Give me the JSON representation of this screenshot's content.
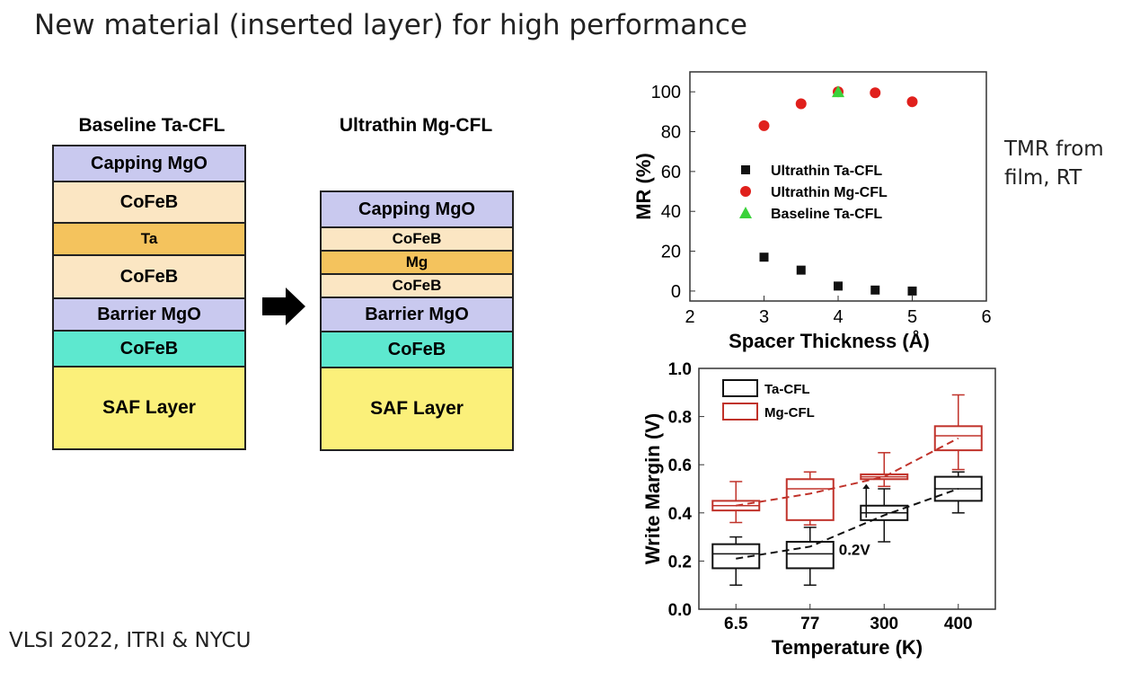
{
  "slide": {
    "title": "New material (inserted layer) for high performance",
    "footer": "VLSI 2022, ITRI & NYCU",
    "note_line1": "TMR from",
    "note_line2": "film, RT"
  },
  "stacks": [
    {
      "title": "Baseline Ta-CFL",
      "layers": [
        {
          "label": "Capping MgO",
          "color": "#c9c9ef"
        },
        {
          "label": "CoFeB",
          "color": "#fbe6c3"
        },
        {
          "label": "Ta",
          "color": "#f4c35d"
        },
        {
          "label": "CoFeB",
          "color": "#fbe6c3"
        },
        {
          "label": "Barrier MgO",
          "color": "#c9c9ef"
        },
        {
          "label": "CoFeB",
          "color": "#5de8cf"
        },
        {
          "label": "SAF Layer",
          "color": "#fbf07a"
        }
      ]
    },
    {
      "title": "Ultrathin Mg-CFL",
      "layers": [
        {
          "label": "Capping MgO",
          "color": "#c9c9ef"
        },
        {
          "label": "CoFeB",
          "color": "#fbe6c3"
        },
        {
          "label": "Mg",
          "color": "#f4c35d"
        },
        {
          "label": "CoFeB",
          "color": "#fbe6c3"
        },
        {
          "label": "Barrier MgO",
          "color": "#c9c9ef"
        },
        {
          "label": "CoFeB",
          "color": "#5de8cf"
        },
        {
          "label": "SAF Layer",
          "color": "#fbf07a"
        }
      ]
    }
  ],
  "chart_data": [
    {
      "type": "scatter",
      "xlabel": "Spacer Thickness (Å)",
      "ylabel": "MR (%)",
      "xlim": [
        2,
        6
      ],
      "ylim": [
        -5,
        110
      ],
      "xticks": [
        2,
        3,
        4,
        5,
        6
      ],
      "yticks": [
        0,
        20,
        40,
        60,
        80,
        100
      ],
      "legend_position": "center-left",
      "series": [
        {
          "name": "Ultrathin Ta-CFL",
          "marker": "square",
          "color": "#111111",
          "x": [
            3,
            3.5,
            4,
            4.5,
            5
          ],
          "y": [
            17,
            10.5,
            2.5,
            0.5,
            0
          ]
        },
        {
          "name": "Ultrathin Mg-CFL",
          "marker": "circle",
          "color": "#e0201c",
          "x": [
            3,
            3.5,
            4,
            4.5,
            5
          ],
          "y": [
            83,
            94,
            100,
            99.5,
            95
          ]
        },
        {
          "name": "Baseline Ta-CFL",
          "marker": "triangle",
          "color": "#3bd23b",
          "x": [
            4
          ],
          "y": [
            100
          ]
        }
      ]
    },
    {
      "type": "box",
      "xlabel": "Temperature (K)",
      "ylabel": "Write Margin (V)",
      "categories": [
        "6.5",
        "77",
        "300",
        "400"
      ],
      "ylim": [
        0,
        1.0
      ],
      "yticks": [
        "0.0",
        "0.2",
        "0.4",
        "0.6",
        "0.8",
        "1.0"
      ],
      "legend_position": "top-left",
      "annotation": "0.2V",
      "series": [
        {
          "name": "Ta-CFL",
          "color": "#111111",
          "boxes": [
            {
              "min": 0.1,
              "q1": 0.17,
              "median": 0.23,
              "q3": 0.27,
              "max": 0.3
            },
            {
              "min": 0.1,
              "q1": 0.17,
              "median": 0.23,
              "q3": 0.28,
              "max": 0.34
            },
            {
              "min": 0.28,
              "q1": 0.37,
              "median": 0.4,
              "q3": 0.43,
              "max": 0.5
            },
            {
              "min": 0.4,
              "q1": 0.45,
              "median": 0.5,
              "q3": 0.55,
              "max": 0.57
            }
          ],
          "trend": [
            0.21,
            0.26,
            0.39,
            0.5
          ]
        },
        {
          "name": "Mg-CFL",
          "color": "#c0322a",
          "boxes": [
            {
              "min": 0.36,
              "q1": 0.41,
              "median": 0.43,
              "q3": 0.45,
              "max": 0.53
            },
            {
              "min": 0.35,
              "q1": 0.37,
              "median": 0.5,
              "q3": 0.54,
              "max": 0.57
            },
            {
              "min": 0.51,
              "q1": 0.54,
              "median": 0.55,
              "q3": 0.56,
              "max": 0.65
            },
            {
              "min": 0.58,
              "q1": 0.66,
              "median": 0.72,
              "q3": 0.76,
              "max": 0.89
            }
          ],
          "trend": [
            0.43,
            0.48,
            0.55,
            0.71
          ]
        }
      ]
    }
  ]
}
